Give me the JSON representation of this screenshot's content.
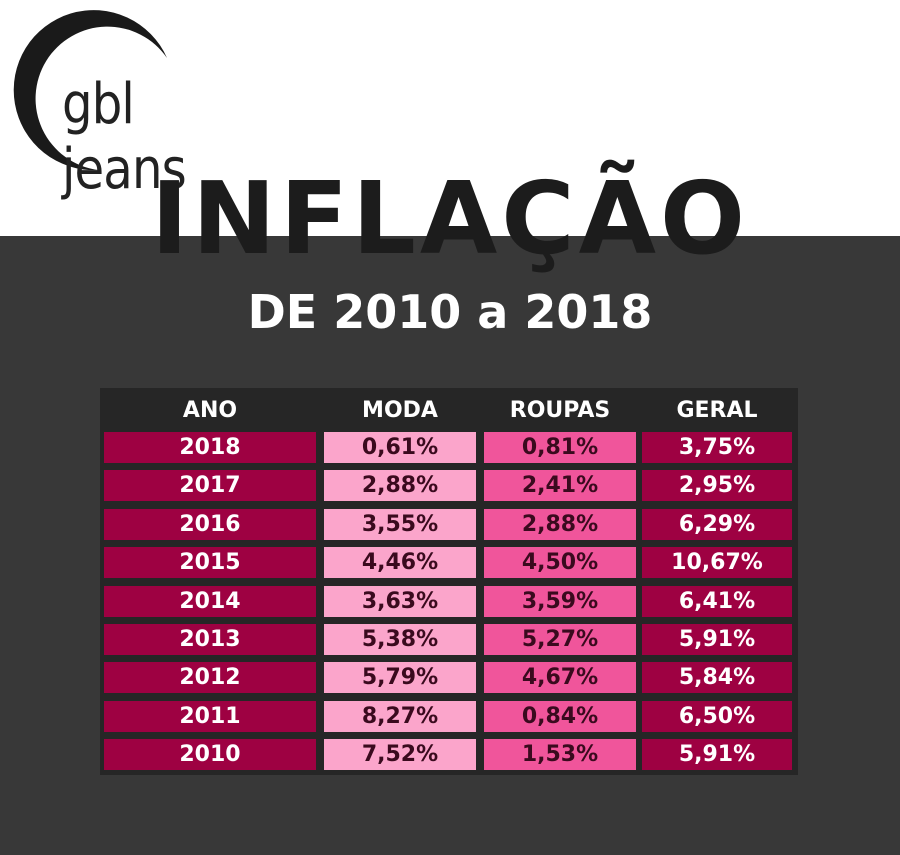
{
  "brand": {
    "logo_text": "gbl jeans"
  },
  "headline": "INFLAÇÃO",
  "subtitle": "DE 2010 a 2018",
  "colors": {
    "panel": "#383838",
    "table_background": "#262626",
    "ano_geral_cell": "#9e0142",
    "moda_cell": "#fba5cb",
    "roupas_cell": "#f0559b"
  },
  "chart_data": {
    "type": "table",
    "columns": [
      "ANO",
      "MODA",
      "ROUPAS",
      "GERAL"
    ],
    "rows": [
      [
        "2018",
        "0,61%",
        "0,81%",
        "3,75%"
      ],
      [
        "2017",
        "2,88%",
        "2,41%",
        "2,95%"
      ],
      [
        "2016",
        "3,55%",
        "2,88%",
        "6,29%"
      ],
      [
        "2015",
        "4,46%",
        "4,50%",
        "10,67%"
      ],
      [
        "2014",
        "3,63%",
        "3,59%",
        "6,41%"
      ],
      [
        "2013",
        "5,38%",
        "5,27%",
        "5,91%"
      ],
      [
        "2012",
        "5,79%",
        "4,67%",
        "5,84%"
      ],
      [
        "2011",
        "8,27%",
        "0,84%",
        "6,50%"
      ],
      [
        "2010",
        "7,52%",
        "1,53%",
        "5,91%"
      ]
    ]
  }
}
